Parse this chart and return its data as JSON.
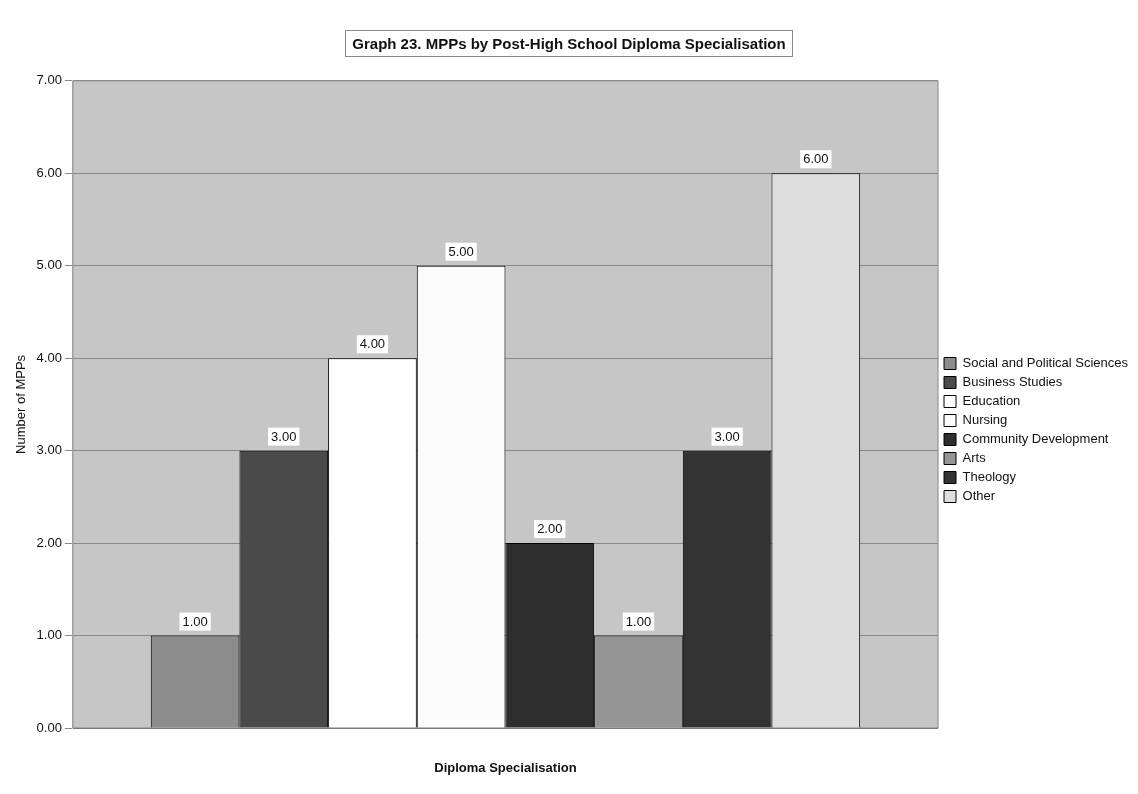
{
  "chart_data": {
    "type": "bar",
    "title": "Graph 23. MPPs by Post-High School Diploma Specialisation",
    "xlabel": "Diploma Specialisation",
    "ylabel": "Number of MPPs",
    "categories": [
      null
    ],
    "series": [
      {
        "name": "Social and Political Sciences",
        "color": "#8c8c8c",
        "values": [
          1
        ],
        "value_labels": [
          "1.00"
        ]
      },
      {
        "name": "Business Studies",
        "color": "#4a4a4a",
        "values": [
          3
        ],
        "value_labels": [
          "3.00"
        ]
      },
      {
        "name": "Education",
        "color": "#ffffff",
        "values": [
          4
        ],
        "value_labels": [
          "4.00"
        ]
      },
      {
        "name": "Nursing",
        "color": "#fcfcfc",
        "values": [
          5
        ],
        "value_labels": [
          "5.00"
        ]
      },
      {
        "name": "Community Development",
        "color": "#2e2e2e",
        "values": [
          2
        ],
        "value_labels": [
          "2.00"
        ]
      },
      {
        "name": "Arts",
        "color": "#959595",
        "values": [
          1
        ],
        "value_labels": [
          "1.00"
        ]
      },
      {
        "name": "Theology",
        "color": "#333333",
        "values": [
          3
        ],
        "value_labels": [
          "3.00"
        ]
      },
      {
        "name": "Other",
        "color": "#dedede",
        "values": [
          6
        ],
        "value_labels": [
          "6.00"
        ]
      }
    ],
    "ylim": [
      0,
      7
    ],
    "yticks": [
      {
        "value": 0,
        "label": "0.00"
      },
      {
        "value": 1,
        "label": "1.00"
      },
      {
        "value": 2,
        "label": "2.00"
      },
      {
        "value": 3,
        "label": "3.00"
      },
      {
        "value": 4,
        "label": "4.00"
      },
      {
        "value": 5,
        "label": "5.00"
      },
      {
        "value": 6,
        "label": "6.00"
      },
      {
        "value": 7,
        "label": "7.00"
      }
    ],
    "grid": "y",
    "legend": "right"
  }
}
